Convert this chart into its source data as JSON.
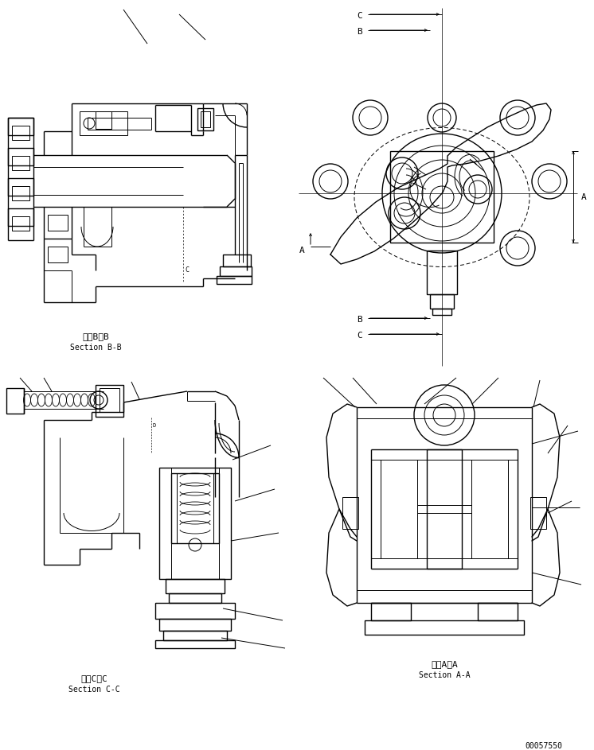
{
  "bg_color": "#ffffff",
  "line_color": "#000000",
  "lw": 0.7,
  "lw2": 1.0,
  "labels": {
    "bb_japanese": "断面B－B",
    "bb_english": "Section B-B",
    "cc_japanese": "断面C－C",
    "cc_english": "Section C-C",
    "aa_japanese": "断面A－A",
    "aa_english": "Section A-A",
    "part_number": "00057550"
  },
  "figsize": [
    7.46,
    9.43
  ],
  "dpi": 100
}
